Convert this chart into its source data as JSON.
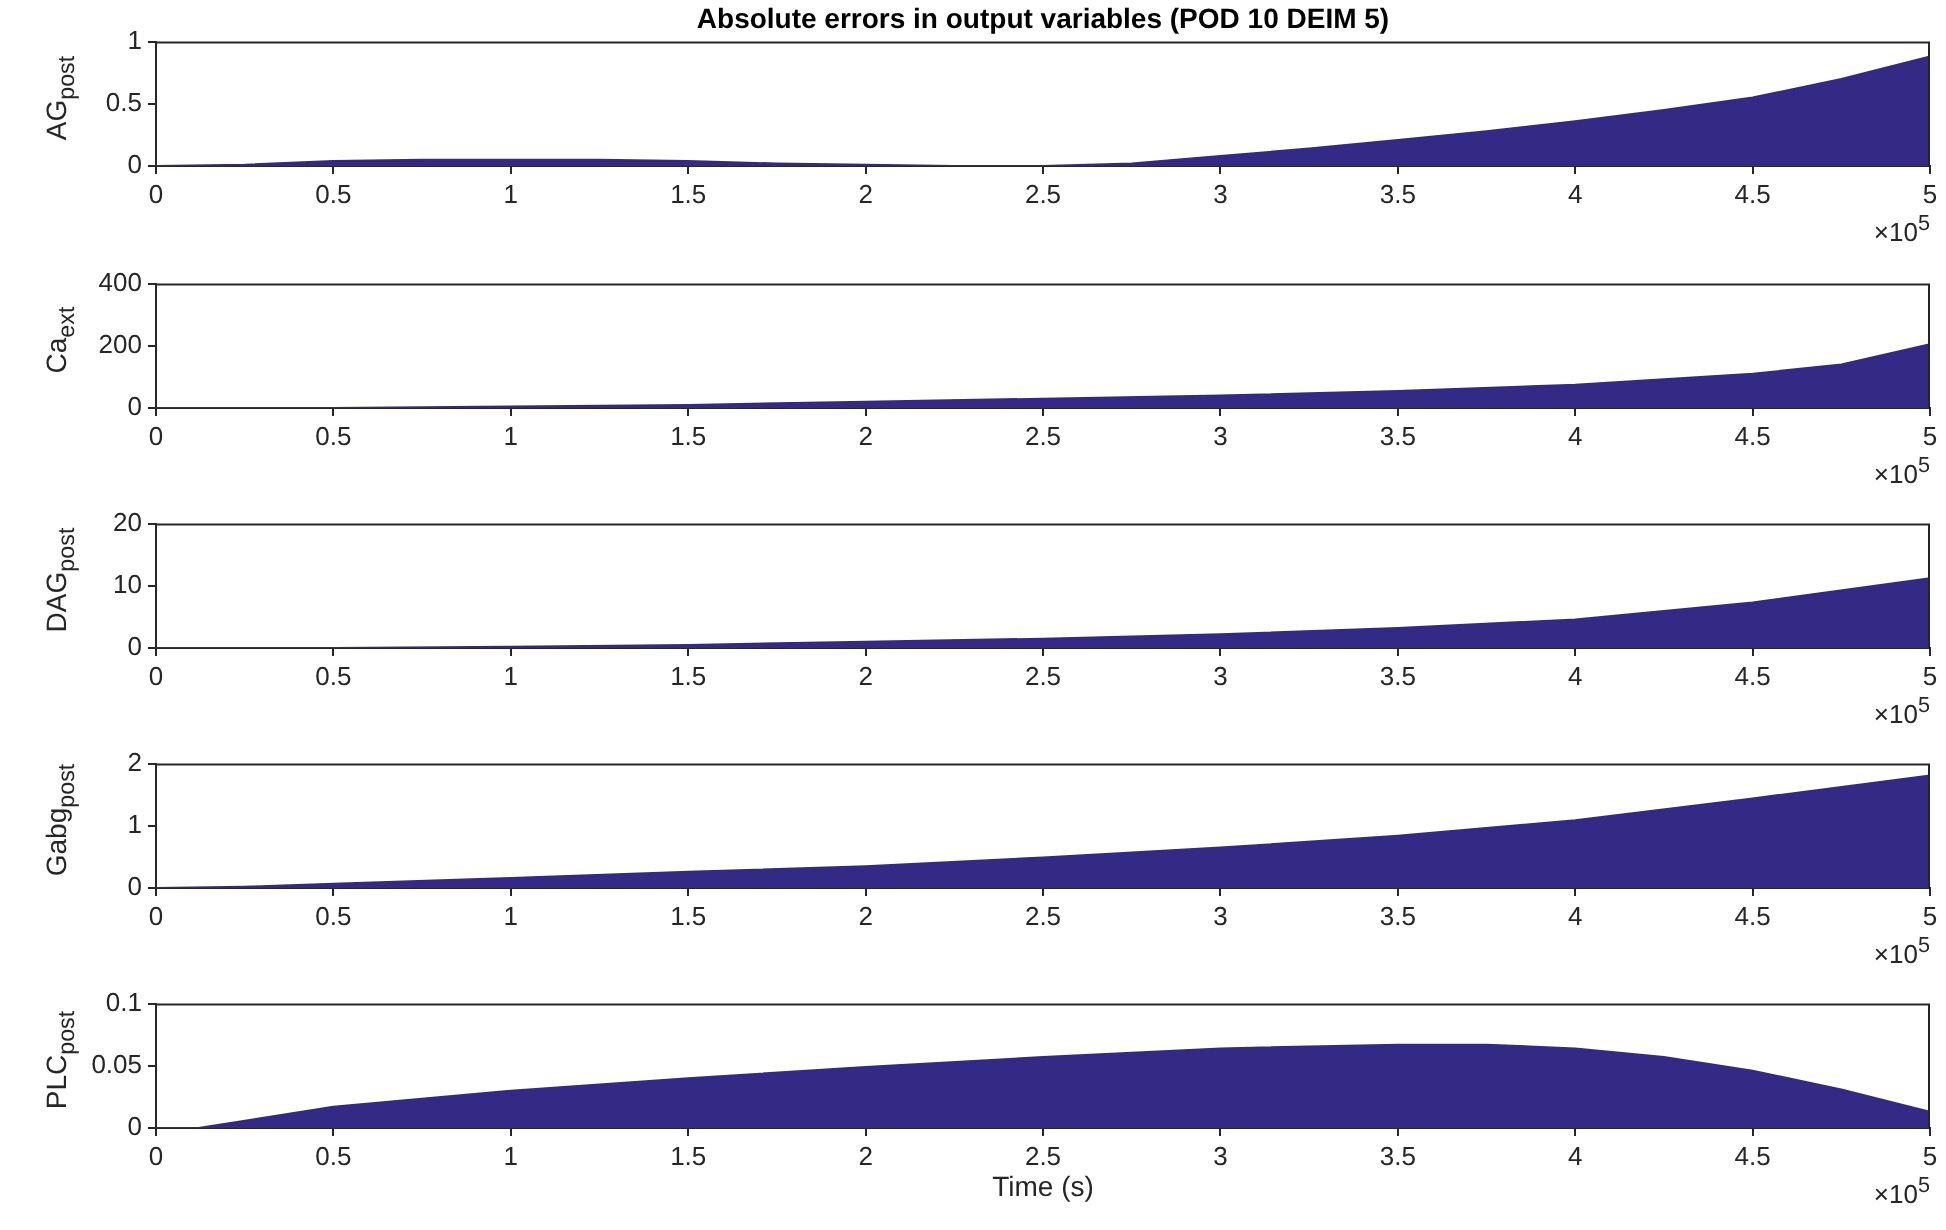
{
  "chart_data": [
    {
      "type": "area",
      "title": "Absolute errors in output variables (POD 10 DEIM 5)",
      "ylabel": "AG$_{post}$",
      "annotations": [
        "×10$^{5}$"
      ],
      "color": "#342a85",
      "marker": "none",
      "x": [
        0,
        0.25,
        0.5,
        0.75,
        1,
        1.25,
        1.5,
        1.75,
        2,
        2.25,
        2.5,
        2.75,
        3,
        3.25,
        3.5,
        3.75,
        4,
        4.25,
        4.5,
        4.75,
        5
      ],
      "values": [
        0,
        0.01,
        0.04,
        0.05,
        0.05,
        0.05,
        0.04,
        0.02,
        0.01,
        0,
        0,
        0.02,
        0.08,
        0.14,
        0.21,
        0.28,
        0.36,
        0.45,
        0.55,
        0.7,
        0.88
      ],
      "xlim": [
        0,
        5
      ],
      "xticks": [
        0,
        0.5,
        1,
        1.5,
        2,
        2.5,
        3,
        3.5,
        4,
        4.5,
        5
      ],
      "ylim": [
        0,
        1
      ],
      "yticks": [
        0,
        0.5,
        1
      ]
    },
    {
      "type": "area",
      "ylabel": "Ca$_{ext}$",
      "annotations": [
        "×10$^{5}$"
      ],
      "color": "#342a85",
      "marker": "none",
      "x": [
        0,
        0.5,
        1,
        1.5,
        2,
        2.5,
        3,
        3.5,
        4,
        4.5,
        4.75,
        5
      ],
      "values": [
        0,
        0,
        5,
        10,
        20,
        30,
        40,
        55,
        75,
        110,
        140,
        205
      ],
      "xlim": [
        0,
        5
      ],
      "xticks": [
        0,
        0.5,
        1,
        1.5,
        2,
        2.5,
        3,
        3.5,
        4,
        4.5,
        5
      ],
      "ylim": [
        0,
        400
      ],
      "yticks": [
        0,
        200,
        400
      ]
    },
    {
      "type": "area",
      "ylabel": "DAG$_{post}$",
      "annotations": [
        "×10$^{5}$"
      ],
      "color": "#342a85",
      "marker": "none",
      "x": [
        0,
        0.5,
        1,
        1.5,
        2,
        2.5,
        3,
        3.5,
        4,
        4.5,
        5
      ],
      "values": [
        0,
        0,
        0.2,
        0.5,
        1,
        1.5,
        2.2,
        3.2,
        4.6,
        7.3,
        11.2
      ],
      "xlim": [
        0,
        5
      ],
      "xticks": [
        0,
        0.5,
        1,
        1.5,
        2,
        2.5,
        3,
        3.5,
        4,
        4.5,
        5
      ],
      "ylim": [
        0,
        20
      ],
      "yticks": [
        0,
        10,
        20
      ]
    },
    {
      "type": "area",
      "ylabel": "Gabg$_{post}$",
      "annotations": [
        "×10$^{5}$"
      ],
      "color": "#342a85",
      "marker": "none",
      "x": [
        0,
        0.25,
        0.5,
        1,
        1.5,
        2,
        2.5,
        3,
        3.5,
        4,
        4.5,
        5
      ],
      "values": [
        0,
        0.02,
        0.07,
        0.16,
        0.26,
        0.35,
        0.49,
        0.65,
        0.84,
        1.09,
        1.44,
        1.81
      ],
      "xlim": [
        0,
        5
      ],
      "xticks": [
        0,
        0.5,
        1,
        1.5,
        2,
        2.5,
        3,
        3.5,
        4,
        4.5,
        5
      ],
      "ylim": [
        0,
        2
      ],
      "yticks": [
        0,
        1,
        2
      ]
    },
    {
      "type": "area",
      "ylabel": "PLC$_{post}$",
      "xlabel": "Time (s)",
      "annotations": [
        "×10$^{5}$"
      ],
      "color": "#342a85",
      "marker": "none",
      "x": [
        0,
        0.12,
        0.5,
        1,
        1.5,
        2,
        2.5,
        3,
        3.5,
        3.75,
        4,
        4.25,
        4.5,
        4.75,
        5
      ],
      "values": [
        0,
        0,
        0.017,
        0.03,
        0.04,
        0.049,
        0.057,
        0.064,
        0.067,
        0.067,
        0.064,
        0.057,
        0.046,
        0.031,
        0.013
      ],
      "xlim": [
        0,
        5
      ],
      "xticks": [
        0,
        0.5,
        1,
        1.5,
        2,
        2.5,
        3,
        3.5,
        4,
        4.5,
        5
      ],
      "ylim": [
        0,
        0.1
      ],
      "yticks": [
        0,
        0.05,
        0.1
      ]
    }
  ]
}
